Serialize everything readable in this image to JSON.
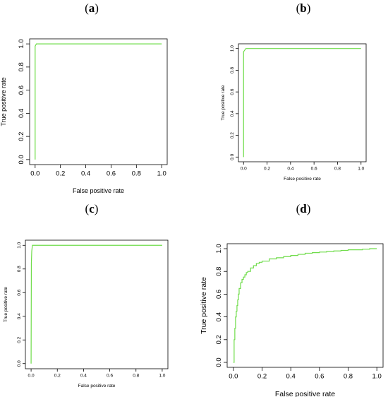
{
  "line_color": "#6fdc4a",
  "chart_data": [
    {
      "panel": "a",
      "type": "line",
      "xlabel": "False positive rate",
      "ylabel": "True positive rate",
      "xlim": [
        0,
        1
      ],
      "ylim": [
        0,
        1
      ],
      "xticks": [
        "0.0",
        "0.2",
        "0.4",
        "0.6",
        "0.8",
        "1.0"
      ],
      "yticks": [
        "0.0",
        "0.2",
        "0.4",
        "0.6",
        "0.8",
        "1.0"
      ],
      "grid": false,
      "series": [
        {
          "x": [
            0,
            0,
            0.01,
            1
          ],
          "y": [
            0,
            0.98,
            1,
            1
          ]
        }
      ]
    },
    {
      "panel": "b",
      "type": "line",
      "xlabel": "False positive rate",
      "ylabel": "True positive rate",
      "xlim": [
        0,
        1
      ],
      "ylim": [
        0,
        1
      ],
      "xticks": [
        "0.0",
        "0.2",
        "0.4",
        "0.6",
        "0.8",
        "1.0"
      ],
      "yticks": [
        "0.0",
        "0.2",
        "0.4",
        "0.6",
        "0.8",
        "1.0"
      ],
      "grid": false,
      "series": [
        {
          "x": [
            0,
            0,
            0.02,
            1
          ],
          "y": [
            0,
            0.97,
            1,
            1
          ]
        }
      ]
    },
    {
      "panel": "c",
      "type": "line",
      "xlabel": "False positive rate",
      "ylabel": "True positive rate",
      "xlim": [
        0,
        1
      ],
      "ylim": [
        0,
        1
      ],
      "xticks": [
        "0.0",
        "0.2",
        "0.4",
        "0.6",
        "0.8",
        "1.0"
      ],
      "yticks": [
        "0.0",
        "0.2",
        "0.4",
        "0.6",
        "0.8",
        "1.0"
      ],
      "grid": false,
      "series": [
        {
          "x": [
            0,
            0.002,
            0.005,
            0.01,
            1
          ],
          "y": [
            0,
            0.85,
            0.95,
            1,
            1
          ]
        }
      ]
    },
    {
      "panel": "d",
      "type": "line",
      "xlabel": "False positive rate",
      "ylabel": "True positive rate",
      "xlim": [
        0,
        1
      ],
      "ylim": [
        0,
        1
      ],
      "xticks": [
        "0.0",
        "0.2",
        "0.4",
        "0.6",
        "0.8",
        "1.0"
      ],
      "yticks": [
        "0.0",
        "0.2",
        "0.4",
        "0.6",
        "0.8",
        "1.0"
      ],
      "grid": false,
      "series": [
        {
          "x": [
            0,
            0.005,
            0.01,
            0.015,
            0.02,
            0.025,
            0.03,
            0.035,
            0.04,
            0.05,
            0.06,
            0.07,
            0.08,
            0.09,
            0.1,
            0.12,
            0.14,
            0.16,
            0.18,
            0.2,
            0.25,
            0.3,
            0.35,
            0.4,
            0.45,
            0.5,
            0.55,
            0.6,
            0.65,
            0.7,
            0.75,
            0.8,
            0.85,
            0.9,
            0.95,
            1.0
          ],
          "y": [
            0,
            0.2,
            0.3,
            0.4,
            0.45,
            0.5,
            0.55,
            0.6,
            0.65,
            0.7,
            0.73,
            0.75,
            0.77,
            0.79,
            0.8,
            0.83,
            0.85,
            0.87,
            0.88,
            0.89,
            0.91,
            0.92,
            0.93,
            0.94,
            0.95,
            0.96,
            0.965,
            0.97,
            0.975,
            0.98,
            0.985,
            0.99,
            0.99,
            0.995,
            1.0,
            1.0
          ]
        }
      ]
    }
  ]
}
